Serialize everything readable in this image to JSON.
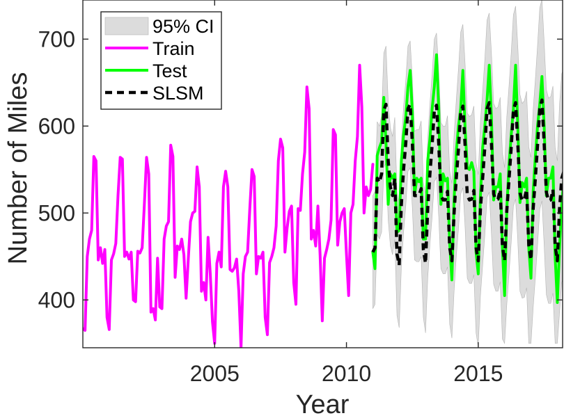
{
  "chart_data": {
    "type": "line",
    "xlabel": "Year",
    "ylabel": "Number of Miles",
    "xlim": [
      2000.0,
      2018.2
    ],
    "ylim": [
      345,
      745
    ],
    "x_ticks": [
      2005,
      2010,
      2015
    ],
    "y_ticks": [
      400,
      500,
      600,
      700
    ],
    "legend_location": "top-left",
    "grid": false,
    "colors": {
      "train": "#ff00ff",
      "test": "#00ff00",
      "slsm": "#000000",
      "ci_fill": "#dcdcdc",
      "ci_edge": "#b4b4b4",
      "axis": "#262626"
    },
    "legend": [
      {
        "label": "95% CI",
        "kind": "ci"
      },
      {
        "label": "Train",
        "kind": "train"
      },
      {
        "label": "Test",
        "kind": "test"
      },
      {
        "label": "SLSM",
        "kind": "slsm"
      }
    ],
    "series": [
      {
        "name": "Train",
        "start": 2000.0,
        "step": 0.083333,
        "values": [
          367,
          365,
          450,
          470,
          480,
          565,
          560,
          446,
          460,
          442,
          458,
          380,
          366,
          446,
          453,
          465,
          520,
          564,
          562,
          450,
          455,
          447,
          455,
          400,
          398,
          456,
          454,
          460,
          510,
          564,
          545,
          386,
          390,
          377,
          448,
          392,
          390,
          470,
          485,
          490,
          578,
          565,
          426,
          462,
          458,
          470,
          452,
          402,
          447,
          490,
          500,
          502,
          553,
          530,
          410,
          420,
          400,
          472,
          430,
          375,
          350,
          442,
          455,
          438,
          530,
          548,
          530,
          435,
          433,
          437,
          447,
          410,
          345,
          430,
          450,
          455,
          505,
          550,
          542,
          430,
          450,
          448,
          455,
          380,
          360,
          443,
          450,
          460,
          485,
          560,
          585,
          575,
          455,
          483,
          502,
          508,
          420,
          395,
          505,
          503,
          545,
          570,
          645,
          620,
          470,
          480,
          462,
          508,
          452,
          376,
          448,
          458,
          470,
          492,
          596,
          590,
          463,
          490,
          500,
          505,
          453,
          405,
          500,
          510,
          560,
          588,
          670,
          622,
          500,
          530,
          520,
          527,
          556
        ]
      },
      {
        "name": "Test",
        "start": 2011.0,
        "step": 0.083333,
        "values": [
          455,
          436,
          566,
          575,
          582,
          633,
          580,
          510,
          545,
          540,
          545,
          478,
          480,
          560,
          590,
          610,
          645,
          664,
          615,
          520,
          540,
          536,
          540,
          470,
          470,
          560,
          585,
          620,
          645,
          682,
          620,
          510,
          545,
          537,
          540,
          465,
          423,
          515,
          570,
          600,
          620,
          664,
          598,
          552,
          550,
          558,
          548,
          455,
          430,
          520,
          575,
          600,
          630,
          670,
          610,
          515,
          530,
          530,
          545,
          460,
          405,
          505,
          555,
          590,
          620,
          670,
          600,
          512,
          535,
          530,
          540,
          460,
          425,
          525,
          565,
          600,
          625,
          657,
          600,
          520,
          540,
          540,
          553,
          450,
          397,
          460,
          510,
          540
        ]
      },
      {
        "name": "SLSM",
        "start": 2011.0,
        "step": 0.083333,
        "values": [
          455,
          460,
          540,
          535,
          545,
          618,
          625,
          560,
          530,
          520,
          540,
          453,
          440,
          510,
          550,
          580,
          620,
          625,
          580,
          520,
          520,
          520,
          528,
          458,
          442,
          505,
          545,
          578,
          618,
          624,
          580,
          520,
          515,
          515,
          525,
          460,
          445,
          500,
          540,
          574,
          615,
          623,
          578,
          520,
          515,
          516,
          526,
          460,
          445,
          505,
          540,
          576,
          620,
          627,
          580,
          522,
          515,
          516,
          527,
          462,
          445,
          503,
          538,
          575,
          618,
          627,
          580,
          523,
          514,
          516,
          527,
          463,
          446,
          505,
          540,
          578,
          620,
          630,
          580,
          524,
          514,
          515,
          527,
          463,
          445,
          505,
          540,
          548
        ]
      },
      {
        "name": "95% CI",
        "start": 2011.0,
        "step": 0.083333,
        "lower": [
          390,
          395,
          475,
          470,
          478,
          552,
          558,
          492,
          462,
          452,
          470,
          382,
          368,
          438,
          478,
          508,
          548,
          552,
          506,
          446,
          444,
          444,
          450,
          380,
          362,
          425,
          464,
          496,
          536,
          541,
          496,
          436,
          430,
          430,
          438,
          372,
          356,
          410,
          450,
          482,
          522,
          529,
          484,
          425,
          419,
          419,
          429,
          362,
          346,
          405,
          440,
          475,
          518,
          524,
          476,
          418,
          410,
          410,
          421,
          355,
          350,
          395,
          430,
          466,
          508,
          516,
          468,
          410,
          402,
          403,
          414,
          350,
          350,
          391,
          426,
          463,
          504,
          514,
          463,
          406,
          396,
          396,
          408,
          350,
          350,
          385,
          420,
          428
        ],
        "upper": [
          520,
          525,
          605,
          600,
          612,
          684,
          692,
          628,
          598,
          588,
          610,
          524,
          512,
          582,
          622,
          652,
          692,
          698,
          654,
          594,
          596,
          596,
          606,
          536,
          522,
          585,
          626,
          660,
          700,
          707,
          664,
          604,
          600,
          600,
          612,
          548,
          534,
          590,
          630,
          666,
          708,
          717,
          672,
          615,
          611,
          613,
          623,
          558,
          544,
          605,
          640,
          677,
          722,
          730,
          684,
          626,
          620,
          622,
          633,
          569,
          552,
          611,
          646,
          684,
          728,
          738,
          692,
          636,
          626,
          629,
          640,
          576,
          564,
          619,
          654,
          693,
          736,
          746,
          697,
          642,
          632,
          634,
          646,
          576,
          560,
          625,
          660,
          668
        ]
      }
    ]
  }
}
